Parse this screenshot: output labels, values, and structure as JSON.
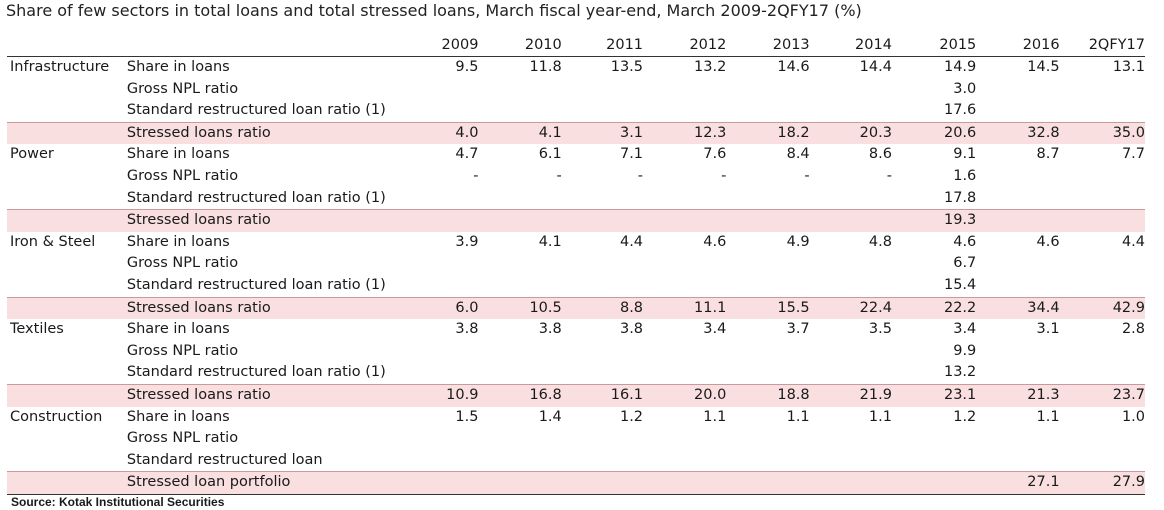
{
  "title": "Share of few sectors in total loans and total stressed loans, March fiscal year-end, March 2009-2QFY17 (%)",
  "columns": [
    "2009",
    "2010",
    "2011",
    "2012",
    "2013",
    "2014",
    "2015",
    "2016",
    "2QFY17"
  ],
  "rows": [
    {
      "sector": "Infrastructure",
      "metric": "Share in loans",
      "values": [
        "9.5",
        "11.8",
        "13.5",
        "13.2",
        "14.6",
        "14.4",
        "14.9",
        "14.5",
        "13.1"
      ],
      "stressed": false
    },
    {
      "sector": "",
      "metric": "Gross NPL ratio",
      "values": [
        "",
        "",
        "",
        "",
        "",
        "",
        "3.0",
        "",
        ""
      ],
      "stressed": false
    },
    {
      "sector": "",
      "metric": "Standard restructured loan ratio (1)",
      "values": [
        "",
        "",
        "",
        "",
        "",
        "",
        "17.6",
        "",
        ""
      ],
      "stressed": false
    },
    {
      "sector": "",
      "metric": "Stressed loans ratio",
      "values": [
        "4.0",
        "4.1",
        "3.1",
        "12.3",
        "18.2",
        "20.3",
        "20.6",
        "32.8",
        "35.0"
      ],
      "stressed": true
    },
    {
      "sector": "Power",
      "metric": "Share in loans",
      "values": [
        "4.7",
        "6.1",
        "7.1",
        "7.6",
        "8.4",
        "8.6",
        "9.1",
        "8.7",
        "7.7"
      ],
      "stressed": false
    },
    {
      "sector": "",
      "metric": "Gross NPL ratio",
      "values": [
        "-",
        "-",
        "-",
        "-",
        "-",
        "-",
        "1.6",
        "",
        ""
      ],
      "stressed": false
    },
    {
      "sector": "",
      "metric": "Standard restructured loan ratio (1)",
      "values": [
        "",
        "",
        "",
        "",
        "",
        "",
        "17.8",
        "",
        ""
      ],
      "stressed": false
    },
    {
      "sector": "",
      "metric": "Stressed loans ratio",
      "values": [
        "",
        "",
        "",
        "",
        "",
        "",
        "19.3",
        "",
        ""
      ],
      "stressed": true
    },
    {
      "sector": "Iron & Steel",
      "metric": "Share in loans",
      "values": [
        "3.9",
        "4.1",
        "4.4",
        "4.6",
        "4.9",
        "4.8",
        "4.6",
        "4.6",
        "4.4"
      ],
      "stressed": false
    },
    {
      "sector": "",
      "metric": "Gross NPL ratio",
      "values": [
        "",
        "",
        "",
        "",
        "",
        "",
        "6.7",
        "",
        ""
      ],
      "stressed": false
    },
    {
      "sector": "",
      "metric": "Standard restructured loan ratio (1)",
      "values": [
        "",
        "",
        "",
        "",
        "",
        "",
        "15.4",
        "",
        ""
      ],
      "stressed": false
    },
    {
      "sector": "",
      "metric": "Stressed loans ratio",
      "values": [
        "6.0",
        "10.5",
        "8.8",
        "11.1",
        "15.5",
        "22.4",
        "22.2",
        "34.4",
        "42.9"
      ],
      "stressed": true
    },
    {
      "sector": "Textiles",
      "metric": "Share in loans",
      "values": [
        "3.8",
        "3.8",
        "3.8",
        "3.4",
        "3.7",
        "3.5",
        "3.4",
        "3.1",
        "2.8"
      ],
      "stressed": false
    },
    {
      "sector": "",
      "metric": "Gross NPL ratio",
      "values": [
        "",
        "",
        "",
        "",
        "",
        "",
        "9.9",
        "",
        ""
      ],
      "stressed": false
    },
    {
      "sector": "",
      "metric": "Standard restructured loan ratio (1)",
      "values": [
        "",
        "",
        "",
        "",
        "",
        "",
        "13.2",
        "",
        ""
      ],
      "stressed": false
    },
    {
      "sector": "",
      "metric": "Stressed loans ratio",
      "values": [
        "10.9",
        "16.8",
        "16.1",
        "20.0",
        "18.8",
        "21.9",
        "23.1",
        "21.3",
        "23.7"
      ],
      "stressed": true
    },
    {
      "sector": "Construction",
      "metric": "Share in loans",
      "values": [
        "1.5",
        "1.4",
        "1.2",
        "1.1",
        "1.1",
        "1.1",
        "1.2",
        "1.1",
        "1.0"
      ],
      "stressed": false
    },
    {
      "sector": "",
      "metric": "Gross NPL ratio",
      "values": [
        "",
        "",
        "",
        "",
        "",
        "",
        "",
        "",
        ""
      ],
      "stressed": false
    },
    {
      "sector": "",
      "metric": "Standard restructured loan",
      "values": [
        "",
        "",
        "",
        "",
        "",
        "",
        "",
        "",
        ""
      ],
      "stressed": false
    },
    {
      "sector": "",
      "metric": "Stressed loan portfolio",
      "values": [
        "",
        "",
        "",
        "",
        "",
        "",
        "",
        "27.1",
        "27.9"
      ],
      "stressed": true
    }
  ],
  "source": "Source: Kotak Institutional Securities",
  "colors": {
    "stressed_row_bg": "#f9dfe0",
    "text": "#1a1a1a"
  }
}
